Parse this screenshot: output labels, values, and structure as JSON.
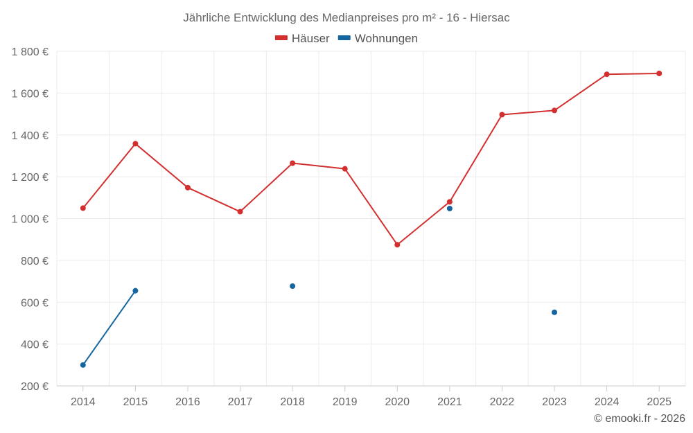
{
  "chart_data": {
    "type": "line",
    "title": "Jährliche Entwicklung des Medianpreises pro m² - 16 - Hiersac",
    "xlabel": "",
    "ylabel": "",
    "categories": [
      "2014",
      "2015",
      "2016",
      "2017",
      "2018",
      "2019",
      "2020",
      "2021",
      "2022",
      "2023",
      "2024",
      "2025"
    ],
    "ylim": [
      200,
      1800
    ],
    "yticks": [
      200,
      400,
      600,
      800,
      1000,
      1200,
      1400,
      1600,
      1800
    ],
    "ytick_labels": [
      "200 €",
      "400 €",
      "600 €",
      "800 €",
      "1 000 €",
      "1 200 €",
      "1 400 €",
      "1 600 €",
      "1 800 €"
    ],
    "legend_position": "top-center",
    "grid": true,
    "series": [
      {
        "name": "Häuser",
        "color": "#d32f2f",
        "values": [
          1050,
          1358,
          1148,
          1033,
          1265,
          1238,
          875,
          1080,
          1497,
          1517,
          1690,
          1694
        ]
      },
      {
        "name": "Wohnungen",
        "color": "#1565a0",
        "values": [
          300,
          655,
          null,
          null,
          677,
          null,
          null,
          1048,
          null,
          552,
          null,
          null
        ]
      }
    ],
    "credit": "© emooki.fr - 2026"
  }
}
